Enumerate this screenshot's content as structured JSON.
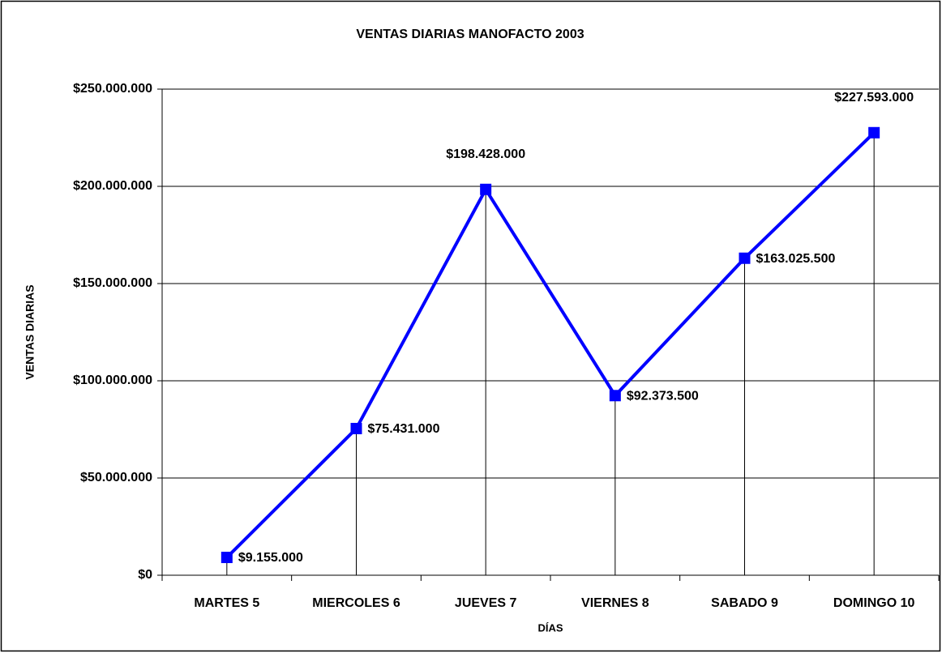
{
  "chart_data": {
    "type": "line",
    "title": "VENTAS DIARIAS MANOFACTO 2003",
    "x_label": "DÍAS",
    "y_label": "VENTAS DIARIAS",
    "categories": [
      "MARTES 5",
      "MIERCOLES 6",
      "JUEVES 7",
      "VIERNES 8",
      "SABADO 9",
      "DOMINGO 10"
    ],
    "values": [
      9155000,
      75431000,
      198428000,
      92373500,
      163025500,
      227593000
    ],
    "value_labels": [
      "$9.155.000",
      "$75.431.000",
      "$198.428.000",
      "$92.373.500",
      "$163.025.500",
      "$227.593.000"
    ],
    "color": "#0000ff",
    "ylim": [
      0,
      250000000
    ],
    "yticks": [
      {
        "value": 0,
        "label": "$0"
      },
      {
        "value": 50000000,
        "label": "$50.000.000"
      },
      {
        "value": 100000000,
        "label": "$100.000.000"
      },
      {
        "value": 150000000,
        "label": "$150.000.000"
      },
      {
        "value": 200000000,
        "label": "$200.000.000"
      },
      {
        "value": 250000000,
        "label": "$250.000.000"
      }
    ],
    "grid": true
  }
}
